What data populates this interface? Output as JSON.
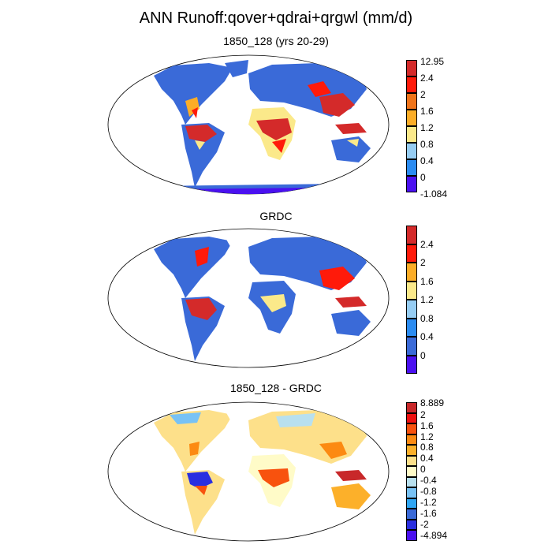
{
  "title": "ANN Runoff:qover+qdrai+qrgwl (mm/d)",
  "colors": {
    "cat": [
      "#4a10f0",
      "#3a6ad8",
      "#2b8cf2",
      "#96cdf3",
      "#fbe98a",
      "#fcad27",
      "#f0741a",
      "#ff1a0a",
      "#d42a2a"
    ]
  },
  "panels": [
    {
      "id": "p1",
      "title": "1850_128 (yrs 20-29)",
      "legend_labels": [
        "12.95",
        "2.4",
        "2",
        "1.6",
        "1.2",
        "0.8",
        "0.4",
        "0",
        "-1.084"
      ],
      "legend_colors": [
        "#d42a2a",
        "#ff1a0a",
        "#f0741a",
        "#fcad27",
        "#fbe98a",
        "#96cdf3",
        "#2b8cf2",
        "#3a6ad8",
        "#4a10f0"
      ]
    },
    {
      "id": "p2",
      "title": "GRDC",
      "legend_labels": [
        "2.4",
        "2",
        "1.6",
        "1.2",
        "0.8",
        "0.4",
        "0"
      ],
      "legend_colors": [
        "#d42a2a",
        "#ff1a0a",
        "#fcad27",
        "#fbe98a",
        "#96cdf3",
        "#2b8cf2",
        "#3a6ad8",
        "#4a10f0"
      ]
    },
    {
      "id": "p3",
      "title": "1850_128 - GRDC",
      "legend_labels": [
        "8.889",
        "2",
        "1.6",
        "1.2",
        "0.8",
        "0.4",
        "0",
        "-0.4",
        "-0.8",
        "-1.2",
        "-1.6",
        "-2",
        "-4.894"
      ],
      "legend_colors": [
        "#c8282a",
        "#ee1010",
        "#f8520e",
        "#fc8a12",
        "#fcb02a",
        "#fde08a",
        "#fffbc8",
        "#b8e0ef",
        "#78c2f5",
        "#2fa6f4",
        "#3a6ad8",
        "#2a2fe0",
        "#4a10f0"
      ]
    }
  ]
}
